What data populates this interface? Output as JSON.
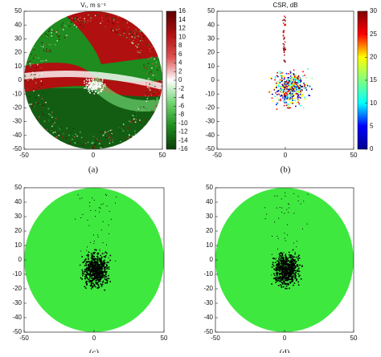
{
  "chart_data": [
    {
      "type": "image",
      "title": "Vᵣ, m s⁻¹",
      "caption": "(a)",
      "xlim": [
        -50,
        50
      ],
      "ylim": [
        -50,
        50
      ],
      "xticks": [
        -50,
        0,
        50
      ],
      "yticks": [
        -50,
        -40,
        -30,
        -20,
        -10,
        0,
        10,
        20,
        30,
        40,
        50
      ],
      "colormap": "red-white-green",
      "colorbar": {
        "lim": [
          -16,
          16
        ],
        "ticks": [
          -16,
          -14,
          -12,
          -10,
          -8,
          -6,
          -4,
          -2,
          0,
          2,
          4,
          6,
          8,
          10,
          12,
          14,
          16
        ]
      }
    },
    {
      "type": "image",
      "title": "CSR, dB",
      "caption": "(b)",
      "xlim": [
        -50,
        50
      ],
      "ylim": [
        -50,
        50
      ],
      "xticks": [
        -50,
        0,
        50
      ],
      "yticks": [
        -50,
        -40,
        -30,
        -20,
        -10,
        0,
        10,
        20,
        30,
        40,
        50
      ],
      "colormap": "jet",
      "colorbar": {
        "lim": [
          0,
          30
        ],
        "ticks": [
          0,
          5,
          10,
          15,
          20,
          25,
          30
        ]
      }
    },
    {
      "type": "image",
      "caption": "(c)",
      "xlim": [
        -50,
        50
      ],
      "ylim": [
        -50,
        50
      ],
      "xticks": [
        -50,
        0,
        50
      ],
      "yticks": [
        -50,
        -40,
        -30,
        -20,
        -10,
        0,
        10,
        20,
        30,
        40,
        50
      ],
      "color": "#3fe83f"
    },
    {
      "type": "image",
      "caption": "(d)",
      "xlim": [
        -50,
        50
      ],
      "ylim": [
        -50,
        50
      ],
      "xticks": [
        -50,
        0,
        50
      ],
      "yticks": [
        -50,
        -40,
        -30,
        -20,
        -10,
        0,
        10,
        20,
        30,
        40,
        50
      ],
      "color": "#3fe83f"
    }
  ]
}
